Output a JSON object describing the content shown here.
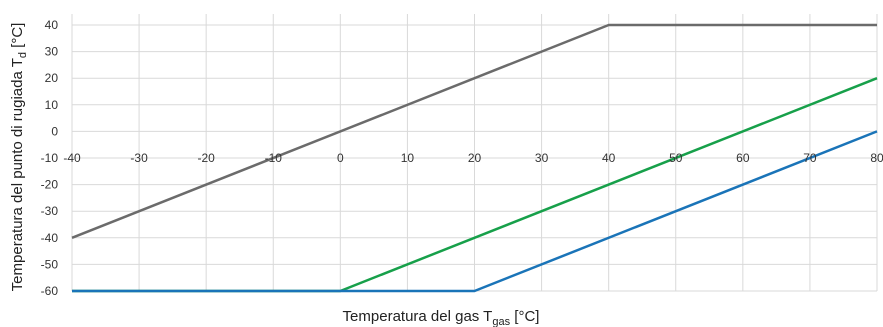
{
  "chart_data": {
    "type": "line",
    "xlabel": {
      "main": "Temperatura del gas T",
      "sub": "gas",
      "tail": " [°C]"
    },
    "ylabel": {
      "main": "Temperatura del punto di rugiada T",
      "sub": "d",
      "tail": " [°C]"
    },
    "xlim": [
      -40,
      80
    ],
    "ylim": [
      -60,
      40
    ],
    "xticks": [
      -40,
      -30,
      -20,
      -10,
      0,
      10,
      20,
      30,
      40,
      50,
      60,
      70,
      80
    ],
    "yticks": [
      40,
      30,
      20,
      10,
      0,
      -10,
      -20,
      -30,
      -40,
      -50,
      -60
    ],
    "grid": true,
    "series": [
      {
        "color": "#6b6b6b",
        "x": [
          -40,
          40,
          80
        ],
        "y": [
          -40,
          40,
          40
        ]
      },
      {
        "color": "#17a04a",
        "x": [
          -40,
          0,
          80
        ],
        "y": [
          -60,
          -60,
          20
        ]
      },
      {
        "color": "#1a74b8",
        "x": [
          -40,
          20,
          80
        ],
        "y": [
          -60,
          -60,
          0
        ]
      }
    ]
  }
}
